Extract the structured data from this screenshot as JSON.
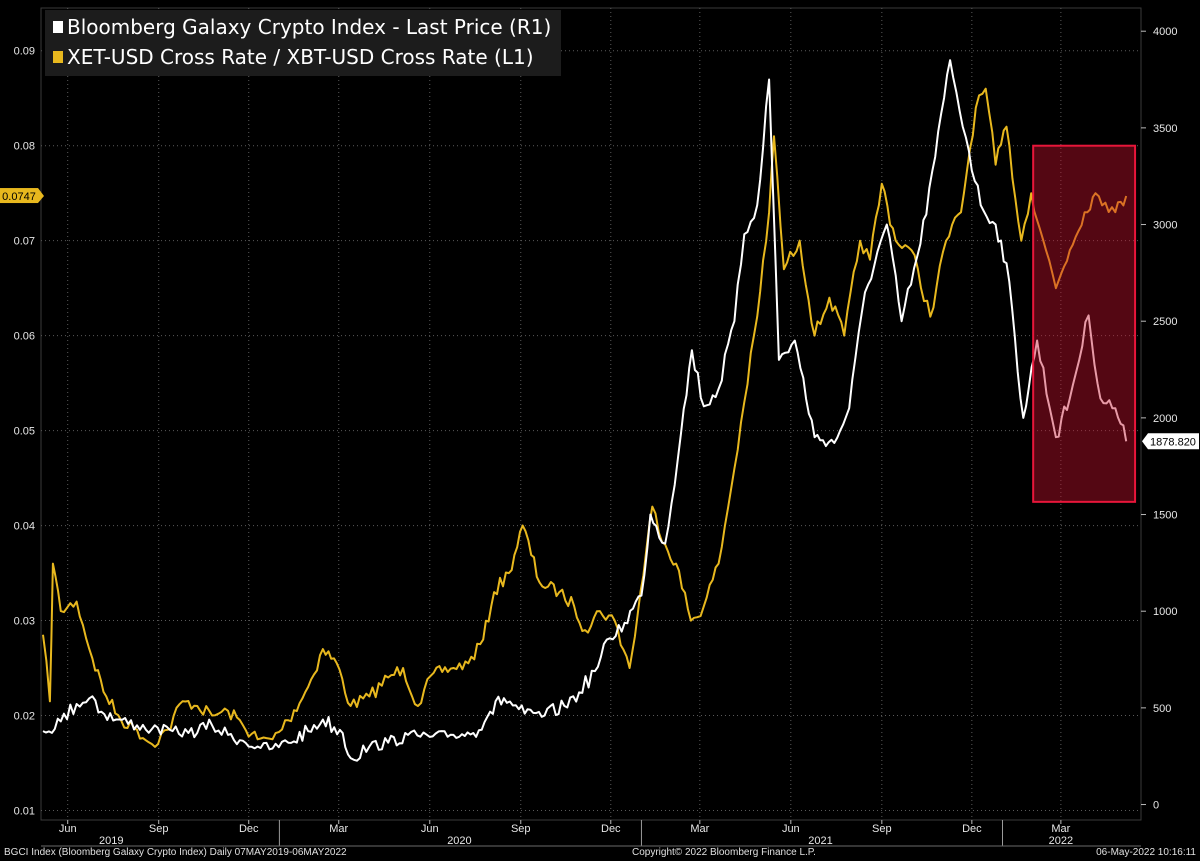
{
  "chart_data": {
    "type": "line",
    "title": "",
    "series": [
      {
        "name": "Bloomberg Galaxy Crypto Index - Last Price (R1)",
        "axis": "right",
        "color": "#ffffff",
        "last_value_label": "1878.820",
        "points": [
          [
            "2019-05-07",
            380
          ],
          [
            "2019-05-25",
            430
          ],
          [
            "2019-06-10",
            520
          ],
          [
            "2019-06-26",
            560
          ],
          [
            "2019-07-05",
            480
          ],
          [
            "2019-07-20",
            440
          ],
          [
            "2019-08-10",
            410
          ],
          [
            "2019-08-25",
            390
          ],
          [
            "2019-09-15",
            380
          ],
          [
            "2019-10-01",
            370
          ],
          [
            "2019-10-25",
            410
          ],
          [
            "2019-11-10",
            360
          ],
          [
            "2019-11-25",
            330
          ],
          [
            "2019-12-10",
            300
          ],
          [
            "2019-12-25",
            290
          ],
          [
            "2020-01-10",
            320
          ],
          [
            "2020-01-30",
            380
          ],
          [
            "2020-02-14",
            440
          ],
          [
            "2020-03-05",
            370
          ],
          [
            "2020-03-13",
            240
          ],
          [
            "2020-04-01",
            300
          ],
          [
            "2020-04-20",
            320
          ],
          [
            "2020-05-10",
            360
          ],
          [
            "2020-06-01",
            350
          ],
          [
            "2020-06-25",
            360
          ],
          [
            "2020-07-15",
            370
          ],
          [
            "2020-08-01",
            480
          ],
          [
            "2020-08-15",
            550
          ],
          [
            "2020-09-05",
            470
          ],
          [
            "2020-09-25",
            460
          ],
          [
            "2020-10-15",
            510
          ],
          [
            "2020-10-30",
            580
          ],
          [
            "2020-11-15",
            690
          ],
          [
            "2020-11-30",
            860
          ],
          [
            "2020-12-15",
            940
          ],
          [
            "2021-01-01",
            1080
          ],
          [
            "2021-01-10",
            1500
          ],
          [
            "2021-01-25",
            1350
          ],
          [
            "2021-02-10",
            1920
          ],
          [
            "2021-02-21",
            2350
          ],
          [
            "2021-03-05",
            2060
          ],
          [
            "2021-03-20",
            2150
          ],
          [
            "2021-04-05",
            2500
          ],
          [
            "2021-04-15",
            2950
          ],
          [
            "2021-04-28",
            3100
          ],
          [
            "2021-05-10",
            3750
          ],
          [
            "2021-05-20",
            2300
          ],
          [
            "2021-06-05",
            2400
          ],
          [
            "2021-06-25",
            1900
          ],
          [
            "2021-07-15",
            1870
          ],
          [
            "2021-07-30",
            2050
          ],
          [
            "2021-08-15",
            2650
          ],
          [
            "2021-09-06",
            3000
          ],
          [
            "2021-09-21",
            2500
          ],
          [
            "2021-10-10",
            2900
          ],
          [
            "2021-10-25",
            3350
          ],
          [
            "2021-11-09",
            3850
          ],
          [
            "2021-11-25",
            3450
          ],
          [
            "2021-12-10",
            3100
          ],
          [
            "2021-12-25",
            3000
          ],
          [
            "2022-01-05",
            2800
          ],
          [
            "2022-01-22",
            2000
          ],
          [
            "2022-02-05",
            2400
          ],
          [
            "2022-02-24",
            1900
          ],
          [
            "2022-03-10",
            2100
          ],
          [
            "2022-03-29",
            2530
          ],
          [
            "2022-04-10",
            2100
          ],
          [
            "2022-04-25",
            2050
          ],
          [
            "2022-05-06",
            1879
          ]
        ]
      },
      {
        "name": "XET-USD Cross Rate / XBT-USD Cross Rate (L1)",
        "axis": "left",
        "color": "#e8b81e",
        "last_value_label": "0.0747",
        "points": [
          [
            "2019-05-07",
            0.0285
          ],
          [
            "2019-05-14",
            0.0215
          ],
          [
            "2019-05-17",
            0.036
          ],
          [
            "2019-05-25",
            0.031
          ],
          [
            "2019-06-10",
            0.032
          ],
          [
            "2019-06-26",
            0.026
          ],
          [
            "2019-07-10",
            0.022
          ],
          [
            "2019-07-25",
            0.0195
          ],
          [
            "2019-08-10",
            0.0185
          ],
          [
            "2019-08-25",
            0.017
          ],
          [
            "2019-09-10",
            0.0185
          ],
          [
            "2019-09-25",
            0.0215
          ],
          [
            "2019-10-10",
            0.021
          ],
          [
            "2019-10-25",
            0.02
          ],
          [
            "2019-11-10",
            0.0205
          ],
          [
            "2019-11-25",
            0.019
          ],
          [
            "2019-12-10",
            0.0175
          ],
          [
            "2019-12-25",
            0.0175
          ],
          [
            "2020-01-10",
            0.0195
          ],
          [
            "2020-01-30",
            0.023
          ],
          [
            "2020-02-14",
            0.027
          ],
          [
            "2020-02-28",
            0.0255
          ],
          [
            "2020-03-13",
            0.021
          ],
          [
            "2020-04-01",
            0.022
          ],
          [
            "2020-04-20",
            0.024
          ],
          [
            "2020-05-05",
            0.025
          ],
          [
            "2020-05-20",
            0.021
          ],
          [
            "2020-06-05",
            0.0245
          ],
          [
            "2020-06-25",
            0.025
          ],
          [
            "2020-07-10",
            0.0255
          ],
          [
            "2020-07-25",
            0.028
          ],
          [
            "2020-08-05",
            0.033
          ],
          [
            "2020-08-20",
            0.035
          ],
          [
            "2020-09-03",
            0.04
          ],
          [
            "2020-09-20",
            0.034
          ],
          [
            "2020-10-10",
            0.033
          ],
          [
            "2020-10-25",
            0.0315
          ],
          [
            "2020-11-05",
            0.029
          ],
          [
            "2020-11-20",
            0.031
          ],
          [
            "2020-12-05",
            0.03
          ],
          [
            "2020-12-20",
            0.025
          ],
          [
            "2020-12-28",
            0.0305
          ],
          [
            "2021-01-12",
            0.042
          ],
          [
            "2021-01-25",
            0.038
          ],
          [
            "2021-02-05",
            0.036
          ],
          [
            "2021-02-20",
            0.03
          ],
          [
            "2021-03-05",
            0.0315
          ],
          [
            "2021-03-20",
            0.036
          ],
          [
            "2021-04-05",
            0.046
          ],
          [
            "2021-04-15",
            0.053
          ],
          [
            "2021-04-28",
            0.062
          ],
          [
            "2021-05-10",
            0.073
          ],
          [
            "2021-05-15",
            0.081
          ],
          [
            "2021-05-25",
            0.067
          ],
          [
            "2021-06-10",
            0.07
          ],
          [
            "2021-06-25",
            0.06
          ],
          [
            "2021-07-10",
            0.064
          ],
          [
            "2021-07-25",
            0.06
          ],
          [
            "2021-08-10",
            0.07
          ],
          [
            "2021-08-20",
            0.068
          ],
          [
            "2021-09-01",
            0.076
          ],
          [
            "2021-09-15",
            0.07
          ],
          [
            "2021-10-01",
            0.069
          ],
          [
            "2021-10-20",
            0.062
          ],
          [
            "2021-11-05",
            0.07
          ],
          [
            "2021-11-20",
            0.073
          ],
          [
            "2021-12-05",
            0.084
          ],
          [
            "2021-12-15",
            0.086
          ],
          [
            "2021-12-25",
            0.078
          ],
          [
            "2022-01-05",
            0.082
          ],
          [
            "2022-01-20",
            0.07
          ],
          [
            "2022-01-30",
            0.075
          ],
          [
            "2022-02-14",
            0.069
          ],
          [
            "2022-02-24",
            0.065
          ],
          [
            "2022-03-10",
            0.069
          ],
          [
            "2022-03-25",
            0.073
          ],
          [
            "2022-04-05",
            0.075
          ],
          [
            "2022-04-15",
            0.074
          ],
          [
            "2022-04-25",
            0.073
          ],
          [
            "2022-05-06",
            0.0747
          ]
        ]
      }
    ],
    "y_left": {
      "ylim": [
        0.009,
        0.0945
      ],
      "ticks": [
        0.01,
        0.02,
        0.03,
        0.04,
        0.05,
        0.06,
        0.07,
        0.08,
        0.09
      ],
      "tick_labels": [
        "0.01",
        "0.02",
        "0.03",
        "0.04",
        "0.05",
        "0.06",
        "0.07",
        "0.08",
        "0.09"
      ]
    },
    "y_right": {
      "ylim": [
        -80,
        4120
      ],
      "ticks": [
        0,
        500,
        1000,
        1500,
        2000,
        2500,
        3000,
        3500,
        4000
      ],
      "tick_labels": [
        "0",
        "500",
        "1000",
        "1500",
        "2000",
        "2500",
        "3000",
        "3500",
        "4000"
      ]
    },
    "x": {
      "range": [
        "2019-05-05",
        "2022-05-21"
      ],
      "month_ticks": [
        [
          "2019-06-01",
          "Jun"
        ],
        [
          "2019-09-01",
          "Sep"
        ],
        [
          "2019-12-01",
          "Dec"
        ],
        [
          "2020-03-01",
          "Mar"
        ],
        [
          "2020-06-01",
          "Jun"
        ],
        [
          "2020-09-01",
          "Sep"
        ],
        [
          "2020-12-01",
          "Dec"
        ],
        [
          "2021-03-01",
          "Mar"
        ],
        [
          "2021-06-01",
          "Jun"
        ],
        [
          "2021-09-01",
          "Sep"
        ],
        [
          "2021-12-01",
          "Dec"
        ],
        [
          "2022-03-01",
          "Mar"
        ]
      ],
      "year_labels": [
        [
          "2019-07-15",
          "2019"
        ],
        [
          "2020-07-01",
          "2020"
        ],
        [
          "2021-07-01",
          "2021"
        ],
        [
          "2022-03-01",
          "2022"
        ]
      ],
      "year_separators": [
        "2020-01-01",
        "2021-01-01",
        "2022-01-01"
      ]
    },
    "highlight": {
      "x_range": [
        "2022-02-01",
        "2022-05-15"
      ],
      "y_left_range": [
        0.0425,
        0.08
      ],
      "color": "#c8102e"
    },
    "grid": true,
    "legend_position": "top-left"
  },
  "footer": {
    "left": "BGCI Index (Bloomberg Galaxy Crypto Index)  Daily 07MAY2019-06MAY2022",
    "center": "Copyright© 2022 Bloomberg Finance L.P.",
    "right": "06-May-2022 10:16:11"
  }
}
